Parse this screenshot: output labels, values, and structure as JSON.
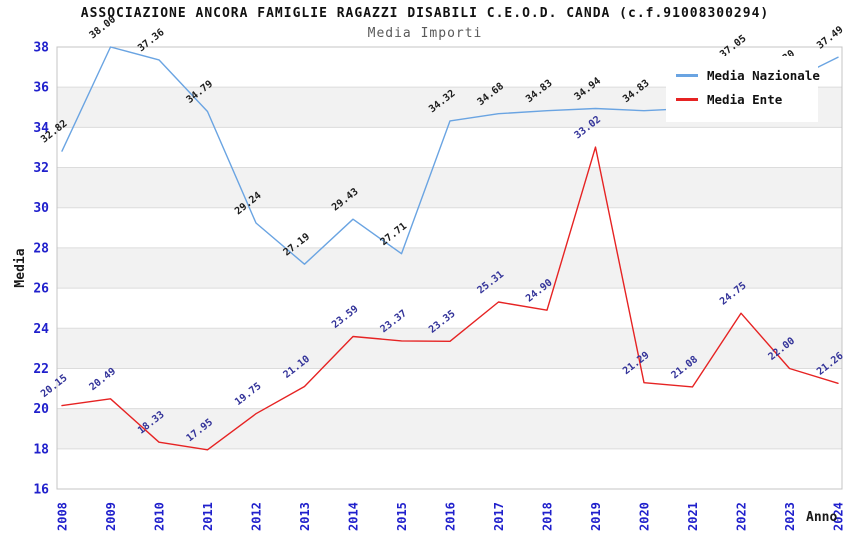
{
  "header": {
    "title": "ASSOCIAZIONE ANCORA FAMIGLIE RAGAZZI DISABILI C.E.O.D. CANDA (c.f.91008300294)",
    "subtitle": "Media Importi"
  },
  "chart_data": {
    "type": "line",
    "title": "ASSOCIAZIONE ANCORA FAMIGLIE RAGAZZI DISABILI C.E.O.D. CANDA (c.f.91008300294)",
    "subtitle": "Media Importi",
    "xlabel": "Anno",
    "ylabel": "Media",
    "x": [
      2008,
      2009,
      2010,
      2011,
      2012,
      2013,
      2014,
      2015,
      2016,
      2017,
      2018,
      2019,
      2020,
      2021,
      2022,
      2023,
      2024
    ],
    "series": [
      {
        "name": "Media Nazionale",
        "color": "#6aa4e2",
        "label_color": "#1c1c1c",
        "values": [
          32.82,
          38.0,
          37.36,
          34.79,
          29.24,
          27.19,
          29.43,
          27.71,
          34.32,
          34.68,
          34.83,
          34.94,
          34.83,
          34.95,
          37.05,
          36.3,
          37.49
        ]
      },
      {
        "name": "Media Ente",
        "color": "#e62323",
        "label_color": "#333399",
        "values": [
          20.15,
          20.49,
          18.33,
          17.95,
          19.75,
          21.1,
          23.59,
          23.37,
          23.35,
          25.31,
          24.9,
          33.02,
          21.29,
          21.08,
          24.75,
          22.0,
          21.26
        ]
      }
    ],
    "ylim": [
      16,
      38
    ],
    "ytick_step": 2,
    "yticks": [
      16,
      18,
      20,
      22,
      24,
      26,
      28,
      30,
      32,
      34,
      36,
      38
    ],
    "grid": "horizontal, alternating shaded bands",
    "legend_position": "top-right",
    "colors": {
      "axis_text": "#2020cc",
      "band_fill": "#f2f2f2",
      "grid_line": "#dcdcdc",
      "plot_border": "#c4c4c4",
      "axis_title_text": "#1a1a1a"
    }
  }
}
